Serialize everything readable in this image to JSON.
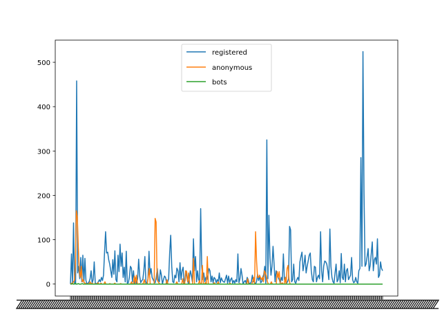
{
  "chart_data": {
    "type": "line",
    "title": "",
    "xlabel": "",
    "ylabel": "",
    "ylim": [
      -27,
      550
    ],
    "yticks": [
      0,
      100,
      200,
      300,
      400,
      500
    ],
    "x_tick_labels_illegible": true,
    "legend_position": "upper center",
    "grid": false,
    "series": [
      {
        "name": "registered",
        "color": "#1f77b4",
        "values": [
          0,
          68,
          2,
          138,
          1,
          0,
          458,
          25,
          40,
          12,
          60,
          5,
          65,
          3,
          58,
          8,
          0,
          2,
          5,
          12,
          30,
          2,
          10,
          50,
          3,
          0,
          2,
          5,
          10,
          5,
          15,
          8,
          20,
          72,
          118,
          70,
          72,
          55,
          45,
          30,
          15,
          55,
          22,
          75,
          10,
          5,
          65,
          28,
          90,
          40,
          70,
          15,
          38,
          5,
          74,
          2,
          3,
          15,
          40,
          36,
          5,
          30,
          2,
          14,
          2,
          12,
          56,
          18,
          3,
          8,
          10,
          30,
          62,
          5,
          0,
          12,
          74,
          22,
          35,
          15,
          10,
          5,
          3,
          15,
          35,
          10,
          5,
          32,
          20,
          0,
          10,
          18,
          15,
          2,
          4,
          12,
          70,
          110,
          40,
          5,
          3,
          20,
          14,
          36,
          30,
          5,
          48,
          10,
          30,
          38,
          2,
          8,
          30,
          10,
          2,
          12,
          30,
          20,
          5,
          102,
          30,
          62,
          5,
          30,
          10,
          5,
          170,
          40,
          10,
          25,
          5,
          15,
          10,
          20,
          35,
          30,
          5,
          18,
          3,
          15,
          12,
          3,
          10,
          5,
          25,
          3,
          14,
          8,
          5,
          4,
          12,
          20,
          2,
          18,
          3,
          10,
          14,
          2,
          8,
          2,
          10,
          5,
          68,
          3,
          12,
          35,
          20,
          0,
          5,
          8,
          2,
          15,
          10,
          0,
          2,
          5,
          20,
          5,
          5,
          0,
          5,
          22,
          8,
          18,
          3,
          5,
          15,
          22,
          40,
          2,
          325,
          12,
          155,
          60,
          20,
          40,
          85,
          45,
          5,
          30,
          20,
          15,
          10,
          2,
          15,
          8,
          68,
          10,
          15,
          2,
          5,
          12,
          130,
          122,
          5,
          10,
          45,
          5,
          2,
          10,
          15,
          8,
          50,
          62,
          72,
          30,
          45,
          65,
          25,
          40,
          52,
          65,
          70,
          30,
          10,
          5,
          40,
          38,
          5,
          15,
          20,
          12,
          118,
          30,
          5,
          40,
          52,
          50,
          45,
          30,
          10,
          124,
          40,
          15,
          5,
          2,
          25,
          45,
          5,
          10,
          30,
          3,
          69,
          15,
          10,
          45,
          5,
          30,
          35,
          10,
          15,
          20,
          60,
          10,
          3,
          5,
          15,
          5,
          2,
          30,
          35,
          285,
          40,
          524,
          208,
          40,
          45,
          62,
          80,
          30,
          42,
          68,
          95,
          30,
          55,
          60,
          45,
          102,
          15,
          20,
          50,
          35,
          30
        ]
      },
      {
        "name": "anonymous",
        "color": "#ff7f0e",
        "values": [
          0,
          2,
          0,
          5,
          8,
          40,
          165,
          150,
          82,
          30,
          15,
          40,
          5,
          10,
          3,
          2,
          0,
          0,
          1,
          0,
          5,
          0,
          2,
          0,
          0,
          1,
          0,
          0,
          3,
          0,
          0,
          2,
          0,
          0,
          0,
          5,
          0,
          0,
          0,
          0,
          1,
          0,
          0,
          0,
          0,
          2,
          0,
          0,
          0,
          0,
          0,
          1,
          0,
          0,
          0,
          0,
          0,
          0,
          0,
          0,
          0,
          0,
          5,
          0,
          0,
          18,
          2,
          20,
          0,
          0,
          1,
          0,
          0,
          0,
          2,
          10,
          0,
          0,
          0,
          15,
          35,
          0,
          0,
          0,
          0,
          0,
          148,
          140,
          10,
          5,
          2,
          0,
          0,
          0,
          0,
          0,
          0,
          0,
          10,
          0,
          0,
          0,
          0,
          0,
          0,
          0,
          0,
          0,
          5,
          0,
          0,
          0,
          0,
          0,
          12,
          0,
          0,
          30,
          28,
          5,
          25,
          0,
          0,
          0,
          0,
          58,
          0,
          0,
          0,
          0,
          0,
          8,
          0,
          0,
          42,
          0,
          0,
          3,
          0,
          62,
          0,
          0,
          0,
          0,
          0,
          0,
          3,
          0,
          0,
          0,
          5,
          0,
          0,
          0,
          0,
          0,
          0,
          0,
          0,
          0,
          0,
          0,
          2,
          0,
          0,
          0,
          0,
          0,
          0,
          0,
          0,
          0,
          1,
          0,
          0,
          0,
          0,
          0,
          0,
          0,
          12,
          0,
          0,
          0,
          0,
          5,
          15,
          0,
          118,
          52,
          15,
          15,
          20,
          15,
          10,
          15,
          5,
          30,
          25,
          18,
          5,
          0,
          0,
          0,
          5,
          0,
          0,
          0,
          0,
          0,
          28,
          15,
          28,
          0,
          0,
          3,
          0,
          0,
          15,
          0,
          35,
          42,
          10,
          0,
          0,
          0,
          0,
          0,
          0,
          0,
          0,
          0,
          0,
          0,
          0,
          0,
          0,
          0,
          0,
          0,
          0,
          0,
          0,
          0,
          0,
          0,
          0,
          0,
          0,
          0,
          0,
          0,
          0,
          0,
          0,
          0,
          0,
          0,
          0,
          0,
          0,
          0,
          0,
          0,
          0,
          0,
          0,
          0,
          0,
          0,
          0,
          0,
          0,
          0,
          0,
          0,
          0,
          0,
          0,
          0,
          0,
          0,
          0,
          0,
          0,
          0,
          0,
          0,
          0,
          0,
          0,
          0,
          0,
          0,
          0,
          0,
          0,
          0,
          0,
          0,
          0,
          0,
          0,
          0,
          0,
          0,
          0,
          0,
          0,
          0,
          0,
          0,
          0,
          0,
          0,
          0,
          0,
          0
        ]
      },
      {
        "name": "bots",
        "color": "#2ca02c",
        "values": [
          0,
          0,
          1,
          0,
          0,
          2,
          0,
          0,
          1,
          0,
          0,
          0,
          1,
          0,
          0,
          0,
          0,
          0,
          0,
          0,
          0,
          0,
          0,
          0,
          0,
          0,
          0,
          0,
          0,
          0,
          0,
          0,
          0,
          0,
          0,
          0,
          0,
          0,
          0,
          0,
          0,
          0,
          0,
          0,
          0,
          0,
          0,
          0,
          0,
          0,
          0,
          0,
          0,
          0,
          0,
          0,
          0,
          0,
          0,
          0,
          0,
          0,
          0,
          0,
          0,
          0,
          0,
          0,
          0,
          0,
          0,
          0,
          0,
          0,
          0,
          0,
          0,
          0,
          0,
          0,
          0,
          0,
          0,
          0,
          0,
          0,
          0,
          0,
          0,
          0,
          0,
          0,
          0,
          0,
          0,
          0,
          0,
          0,
          0,
          0,
          0,
          0,
          0,
          0,
          0,
          0,
          0,
          0,
          0,
          0,
          0,
          0,
          0,
          0,
          0,
          0,
          0,
          0,
          0,
          0,
          0,
          0,
          0,
          0,
          0,
          0,
          0,
          0,
          0,
          0,
          0,
          0,
          0,
          0,
          0,
          0,
          0,
          0,
          0,
          0,
          0,
          0,
          0,
          0,
          0,
          0,
          0,
          0,
          0,
          0,
          0,
          0,
          0,
          0,
          0,
          0,
          0,
          0,
          0,
          0,
          0,
          0,
          0,
          0,
          0,
          0,
          0,
          0,
          0,
          0,
          0,
          0,
          0,
          0,
          0,
          0,
          0,
          0,
          0,
          0,
          0,
          0,
          0,
          0,
          0,
          0,
          0,
          0,
          0,
          0,
          0,
          0,
          0,
          0,
          0,
          0,
          0,
          0,
          0,
          0,
          0,
          0,
          0,
          0,
          0,
          0,
          0,
          0,
          0,
          0,
          0,
          0,
          0,
          0,
          0,
          0,
          0,
          0,
          0,
          0,
          0,
          0,
          0,
          0,
          0,
          0,
          0,
          0,
          0,
          0,
          0,
          0,
          0,
          0,
          0,
          0,
          0,
          0,
          0,
          0,
          0,
          0,
          0,
          0,
          0,
          0,
          0,
          0,
          0,
          0,
          0,
          0,
          0,
          0,
          0,
          0,
          0,
          0,
          0,
          0,
          0,
          0,
          0,
          0,
          0,
          0,
          0,
          0,
          0,
          0,
          0,
          0,
          0,
          0,
          0,
          0,
          0,
          0,
          0,
          0,
          0,
          0,
          0,
          0,
          0,
          0,
          0,
          0,
          0,
          0,
          0,
          0,
          0,
          0,
          0,
          0,
          0,
          0,
          0,
          0,
          0,
          0,
          0,
          0,
          0,
          0,
          0,
          0,
          0,
          0,
          0,
          0,
          0,
          0,
          0,
          0,
          0,
          0,
          0,
          0,
          0
        ]
      }
    ]
  }
}
